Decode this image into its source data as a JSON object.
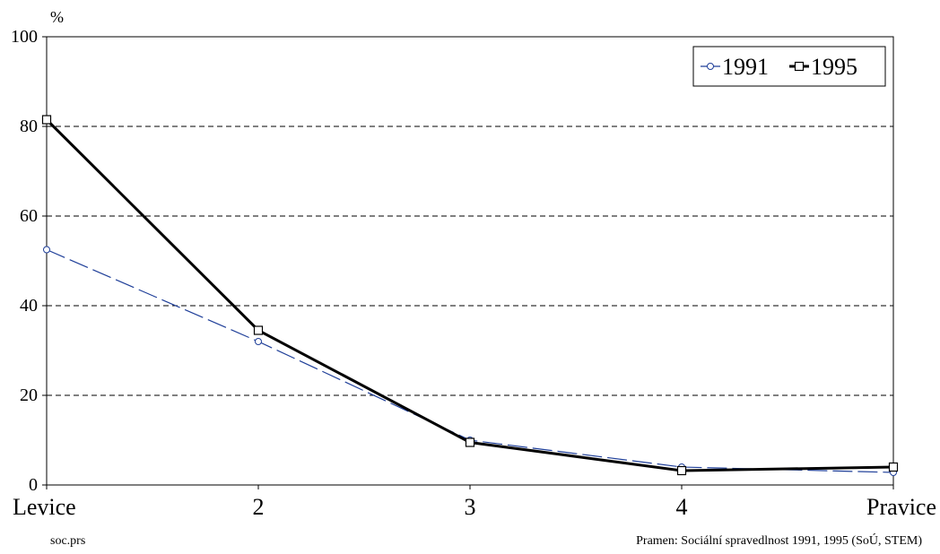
{
  "chart_data": {
    "type": "line",
    "title": "",
    "ylabel": "%",
    "xlabel": "",
    "categories": [
      "Levice",
      "2",
      "3",
      "4",
      "Pravice"
    ],
    "ylim": [
      0,
      100
    ],
    "yticks": [
      0,
      20,
      40,
      60,
      80,
      100
    ],
    "grid": "horizontal dashed",
    "legend_position": "top-right",
    "series": [
      {
        "name": "1991",
        "values": [
          52.5,
          32,
          10,
          4,
          2.8
        ],
        "color": "#1f3f99",
        "style": "dashed",
        "marker": "circle"
      },
      {
        "name": "1995",
        "values": [
          81.5,
          34.5,
          9.5,
          3.2,
          4
        ],
        "color": "#000000",
        "style": "solid",
        "marker": "square"
      }
    ]
  },
  "notes": {
    "left": "soc.prs",
    "right": "Pramen: Sociální spravedlnost 1991, 1995 (SoÚ, STEM)"
  }
}
